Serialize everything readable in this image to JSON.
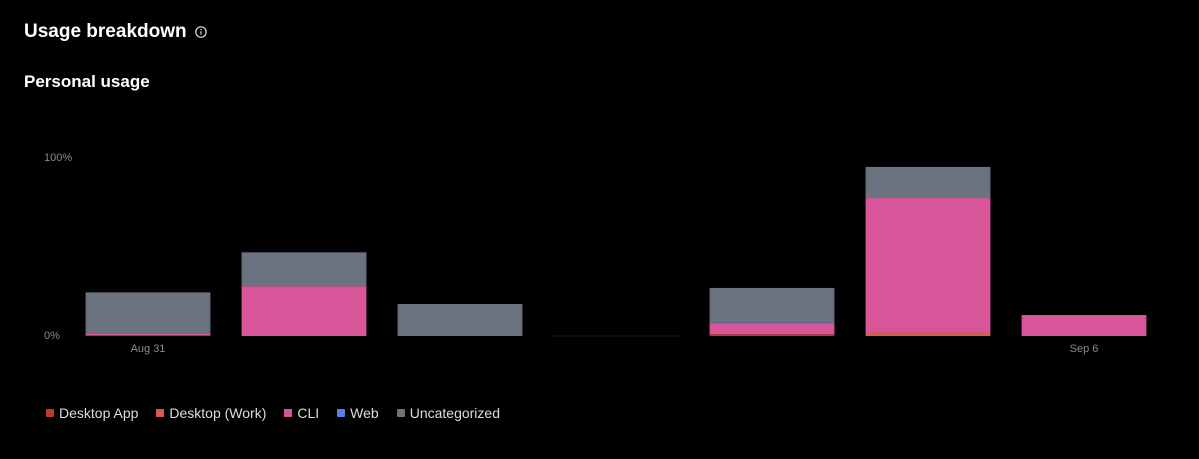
{
  "header": {
    "title": "Usage breakdown",
    "subtitle": "Personal usage"
  },
  "chart_data": {
    "type": "stacked-bar",
    "categories": [
      "Aug 31",
      null,
      null,
      null,
      null,
      null,
      "Sep 6"
    ],
    "series": [
      {
        "name": "Desktop App",
        "color": "#c8342d",
        "values": [
          0.5,
          0,
          0,
          0,
          1,
          0,
          0
        ]
      },
      {
        "name": "Desktop (Work)",
        "color": "#dc5a4b",
        "values": [
          0,
          0,
          0,
          0,
          0,
          2,
          0
        ]
      },
      {
        "name": "CLI",
        "color": "#d9559a",
        "values": [
          1,
          28,
          0,
          0,
          6,
          75.5,
          11.8
        ]
      },
      {
        "name": "Web",
        "color": "#5b7de8",
        "values": [
          0,
          0,
          0,
          0,
          0.5,
          0,
          0
        ]
      },
      {
        "name": "Uncategorized",
        "color": "#6b7280",
        "values": [
          23,
          19,
          18,
          0,
          19.5,
          17.5,
          0
        ]
      }
    ],
    "ylim": [
      0,
      100
    ],
    "yticks": [
      {
        "value": 0,
        "label": "0%"
      },
      {
        "value": 100,
        "label": "100%"
      }
    ],
    "grid": false
  }
}
